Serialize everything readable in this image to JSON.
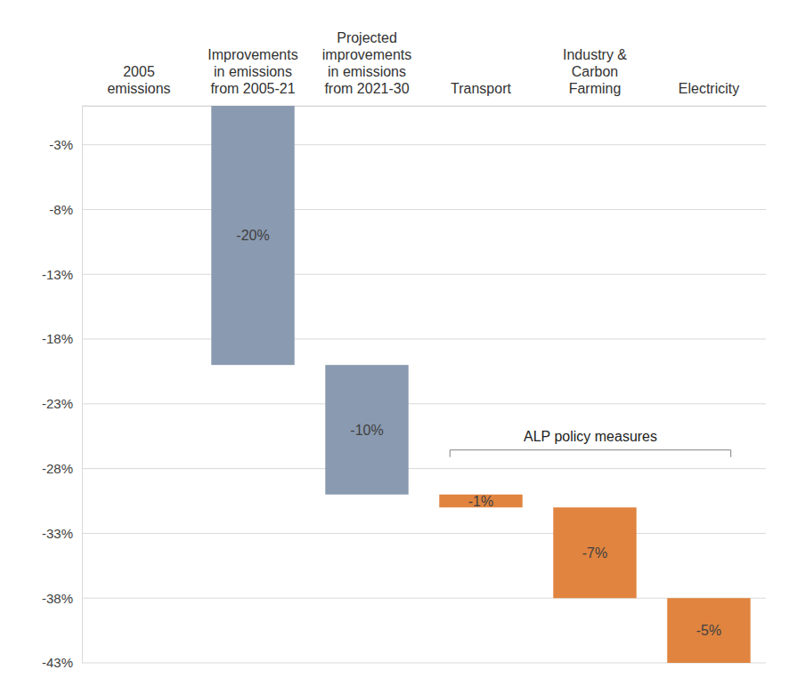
{
  "chart_data": {
    "type": "waterfall",
    "categories": [
      "2005 emissions",
      "Improvements in emissions from 2005-21",
      "Projected improvements in emissions from 2021-30",
      "Transport",
      "Industry & Carbon Farming",
      "Electricity"
    ],
    "values": [
      0,
      -20,
      -10,
      -1,
      -7,
      -5
    ],
    "value_labels": [
      null,
      "-20%",
      "-10%",
      "-1%",
      "-7%",
      "-5%"
    ],
    "colors": [
      "#8a9ab0",
      "#8a9ab0",
      "#8a9ab0",
      "#e0843f",
      "#e0843f",
      "#e0843f"
    ],
    "data_labels": true,
    "grid": true,
    "ylim": [
      -43,
      0
    ],
    "yticks": [
      {
        "value": -3,
        "label": "-3%"
      },
      {
        "value": -8,
        "label": "-8%"
      },
      {
        "value": -13,
        "label": "-13%"
      },
      {
        "value": -18,
        "label": "-18%"
      },
      {
        "value": -23,
        "label": "-23%"
      },
      {
        "value": -28,
        "label": "-28%"
      },
      {
        "value": -33,
        "label": "-33%"
      },
      {
        "value": -38,
        "label": "-38%"
      },
      {
        "value": -43,
        "label": "-43%"
      }
    ],
    "annotation": {
      "text": "ALP policy measures",
      "from": "Transport",
      "to": "Electricity"
    }
  }
}
